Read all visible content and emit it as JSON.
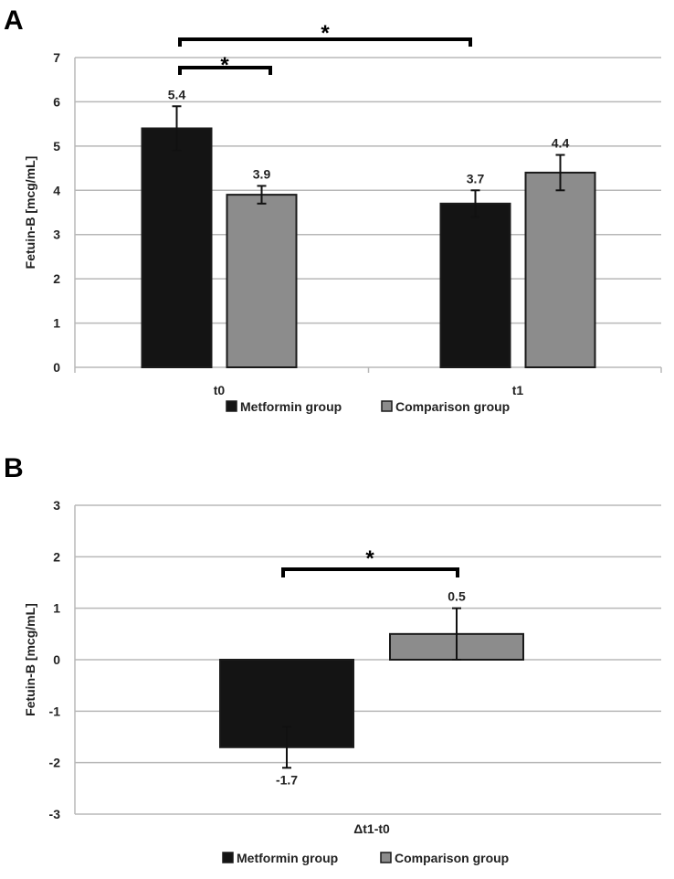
{
  "colors": {
    "metformin": "#141414",
    "comparison": "#8c8c8c",
    "bar_outline": "#1a1a1a",
    "grid": "#b8b8b8"
  },
  "chart_data": [
    {
      "panel": "A",
      "type": "bar",
      "categories": [
        "t0",
        "t1"
      ],
      "ylabel": "Fetuin-B [mcg/mL]",
      "ylim": [
        0,
        7
      ],
      "yticks": [
        "0",
        "1",
        "2",
        "3",
        "4",
        "5",
        "6",
        "7"
      ],
      "grid": true,
      "legend_position": "bottom",
      "series": [
        {
          "name": "Metformin group",
          "values": [
            5.4,
            3.7
          ],
          "error": [
            0.5,
            0.3
          ],
          "labels": [
            "5.4",
            "3.7"
          ]
        },
        {
          "name": "Comparison group",
          "values": [
            3.9,
            4.4
          ],
          "error": [
            0.2,
            0.4
          ],
          "labels": [
            "3.9",
            "4.4"
          ]
        }
      ],
      "significance": [
        {
          "from": "Metformin group t0",
          "to": "Comparison group t0",
          "symbol": "*"
        },
        {
          "from": "Metformin group t0",
          "to": "Metformin group t1",
          "symbol": "*"
        }
      ]
    },
    {
      "panel": "B",
      "type": "bar",
      "categories": [
        "Δt1-t0"
      ],
      "ylabel": "Fetuin-B [mcg/mL]",
      "ylim": [
        -3,
        3
      ],
      "yticks": [
        "-3",
        "-2",
        "-1",
        "0",
        "1",
        "2",
        "3"
      ],
      "grid": true,
      "legend_position": "bottom",
      "series": [
        {
          "name": "Metformin group",
          "values": [
            -1.7
          ],
          "error": [
            0.4
          ],
          "labels": [
            "-1.7"
          ]
        },
        {
          "name": "Comparison group",
          "values": [
            0.5
          ],
          "error": [
            0.5
          ],
          "labels": [
            "0.5"
          ]
        }
      ],
      "significance": [
        {
          "from": "Metformin group",
          "to": "Comparison group",
          "symbol": "*"
        }
      ]
    }
  ]
}
